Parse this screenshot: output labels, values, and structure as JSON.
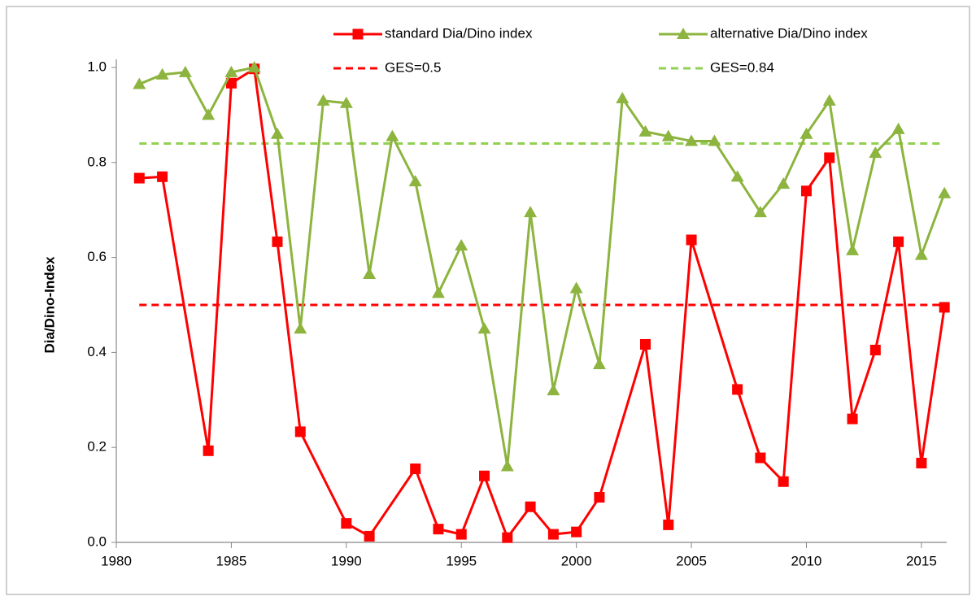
{
  "chart_data": {
    "type": "line",
    "y_label": "Dia/Dino-Index",
    "xlim": [
      1980,
      2016.1
    ],
    "xticks": [
      1980,
      1985,
      1990,
      1995,
      2000,
      2005,
      2010,
      2015
    ],
    "ylim": [
      0,
      1.0
    ],
    "yticks": [
      {
        "value": 0,
        "label": "0.0"
      },
      0.2,
      0.4,
      0.6,
      0.8,
      {
        "value": 1,
        "label": "1.0"
      }
    ],
    "legend": "top",
    "series": [
      {
        "name": "standard Dia/Dino index",
        "color": "#ff0000",
        "marker": "square",
        "x": [
          1981,
          1982,
          1984,
          1985,
          1986,
          1987,
          1988,
          1990,
          1991,
          1993,
          1994,
          1995,
          1996,
          1997,
          1998,
          1999,
          2000,
          2001,
          2003,
          2004,
          2005,
          2007,
          2008,
          2009,
          2010,
          2011,
          2012,
          2013,
          2014,
          2015,
          2016
        ],
        "values": [
          0.767,
          0.77,
          0.193,
          0.967,
          0.997,
          0.633,
          0.233,
          0.04,
          0.013,
          0.155,
          0.028,
          0.017,
          0.14,
          0.01,
          0.075,
          0.017,
          0.022,
          0.095,
          0.417,
          0.037,
          0.637,
          0.322,
          0.178,
          0.128,
          0.74,
          0.81,
          0.26,
          0.405,
          0.633,
          0.167,
          0.495
        ]
      },
      {
        "name": "alternative Dia/Dino index",
        "color": "#8cb43e",
        "marker": "triangle",
        "x": [
          1981,
          1982,
          1983,
          1984,
          1985,
          1986,
          1987,
          1988,
          1989,
          1990,
          1991,
          1992,
          1993,
          1994,
          1995,
          1996,
          1997,
          1998,
          1999,
          2000,
          2001,
          2002,
          2003,
          2004,
          2005,
          2006,
          2007,
          2008,
          2009,
          2010,
          2011,
          2012,
          2013,
          2014,
          2015,
          2016
        ],
        "values": [
          0.965,
          0.985,
          0.99,
          0.9,
          0.99,
          1.0,
          0.86,
          0.45,
          0.93,
          0.925,
          0.565,
          0.855,
          0.76,
          0.525,
          0.625,
          0.45,
          0.16,
          0.695,
          0.32,
          0.535,
          0.375,
          0.935,
          0.865,
          0.855,
          0.845,
          0.845,
          0.77,
          0.695,
          0.755,
          0.86,
          0.93,
          0.615,
          0.82,
          0.87,
          0.605,
          0.735
        ]
      }
    ],
    "reference_lines": [
      {
        "name": "GES=0.5",
        "value": 0.5,
        "color": "#ff0000"
      },
      {
        "name": "GES=0.84",
        "value": 0.84,
        "color": "#92d050"
      }
    ]
  }
}
